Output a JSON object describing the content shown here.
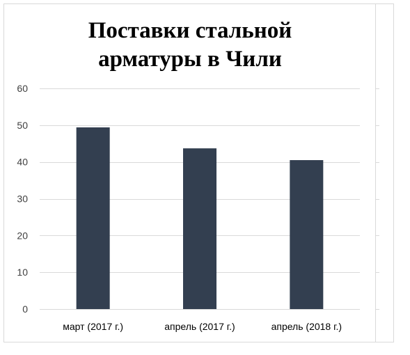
{
  "chart_data": {
    "type": "bar",
    "title": "Поставки стальной\nарматуры в Чили",
    "categories": [
      "март (2017 г.)",
      "апрель (2017 г.)",
      "апрель (2018 г.)"
    ],
    "values": [
      49.4,
      43.7,
      40.5
    ],
    "ylim": [
      0,
      60
    ],
    "yticks": [
      0,
      10,
      20,
      30,
      40,
      50,
      60
    ],
    "ytick_labels": [
      "0",
      "10",
      "20",
      "30",
      "40",
      "50",
      "60"
    ],
    "grid": true,
    "legend": "none",
    "bar_color": "#333f50",
    "grid_color": "#d9d9d9"
  }
}
